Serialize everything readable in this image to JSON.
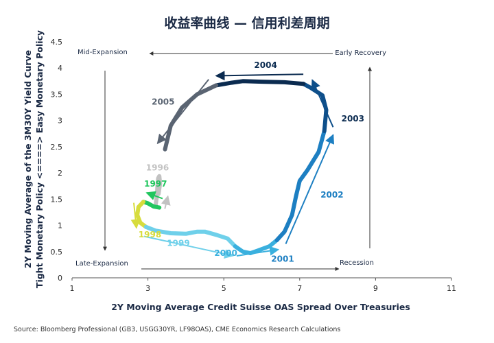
{
  "chart_data": {
    "type": "line",
    "title": "收益率曲线 — 信用利差周期",
    "xlabel": "2Y Moving Average Credit Suisse OAS Spread Over Treasuries",
    "ylabel_line1": "2Y Moving Average of the 3M30Y Yield Curve",
    "ylabel_line2": "Tight Monetary Policy <====> Easy Monetary Policy",
    "xlim": [
      1,
      11
    ],
    "ylim": [
      0,
      4.5
    ],
    "x_ticks": [
      "1",
      "3",
      "5",
      "7",
      "9",
      "11"
    ],
    "y_ticks": [
      "0",
      "0.5",
      "1",
      "1.5",
      "2",
      "2.5",
      "3",
      "3.5",
      "4",
      "4.5"
    ],
    "grid": false,
    "quadrant_labels": {
      "top_left": "Mid-Expansion",
      "top_right": "Early Recovery",
      "bottom_left": "Late-Expansion",
      "bottom_right": "Recession"
    },
    "series": [
      {
        "name": "1996",
        "color": "#c2c2c2",
        "points": [
          [
            3.2,
            1.36
          ],
          [
            3.22,
            1.48
          ],
          [
            3.24,
            1.6
          ],
          [
            3.25,
            1.75
          ],
          [
            3.27,
            1.9
          ],
          [
            3.3,
            1.94
          ],
          [
            3.32,
            1.8
          ],
          [
            3.28,
            1.6
          ]
        ]
      },
      {
        "name": "1997",
        "color": "#21c65e",
        "points": [
          [
            3.3,
            1.34
          ],
          [
            3.15,
            1.36
          ],
          [
            3.0,
            1.42
          ],
          [
            2.88,
            1.45
          ]
        ]
      },
      {
        "name": "1998",
        "color": "#d7dc3c",
        "points": [
          [
            2.88,
            1.45
          ],
          [
            2.75,
            1.35
          ],
          [
            2.72,
            1.2
          ],
          [
            2.8,
            1.05
          ],
          [
            2.95,
            0.97
          ]
        ]
      },
      {
        "name": "1999",
        "color": "#6fd0ea",
        "points": [
          [
            2.95,
            0.97
          ],
          [
            3.2,
            0.9
          ],
          [
            3.6,
            0.85
          ],
          [
            4.0,
            0.84
          ],
          [
            4.3,
            0.88
          ],
          [
            4.5,
            0.88
          ],
          [
            4.8,
            0.82
          ],
          [
            5.1,
            0.75
          ],
          [
            5.3,
            0.6
          ]
        ]
      },
      {
        "name": "2000",
        "color": "#3ab0de",
        "points": [
          [
            5.3,
            0.6
          ],
          [
            5.5,
            0.5
          ],
          [
            5.7,
            0.47
          ],
          [
            5.9,
            0.52
          ],
          [
            6.2,
            0.6
          ],
          [
            6.4,
            0.72
          ]
        ]
      },
      {
        "name": "2001",
        "color": "#1d7fc2",
        "points": [
          [
            6.4,
            0.72
          ],
          [
            6.6,
            0.88
          ],
          [
            6.8,
            1.2
          ],
          [
            6.9,
            1.55
          ],
          [
            7.0,
            1.85
          ],
          [
            7.2,
            2.05
          ],
          [
            7.5,
            2.4
          ],
          [
            7.65,
            2.8
          ]
        ]
      },
      {
        "name": "2002",
        "color": "#0e4f8a",
        "points": [
          [
            7.65,
            2.8
          ],
          [
            7.7,
            3.2
          ],
          [
            7.6,
            3.48
          ],
          [
            7.3,
            3.62
          ],
          [
            7.1,
            3.7
          ]
        ]
      },
      {
        "name": "2003",
        "color": "#0b2b50",
        "points": [
          [
            7.1,
            3.7
          ],
          [
            6.6,
            3.73
          ],
          [
            6.0,
            3.74
          ],
          [
            5.5,
            3.75
          ],
          [
            5.2,
            3.72
          ],
          [
            4.8,
            3.67
          ]
        ]
      },
      {
        "name": "2004",
        "color": "#5a6472",
        "points": [
          [
            4.8,
            3.67
          ],
          [
            4.3,
            3.5
          ],
          [
            3.9,
            3.25
          ],
          [
            3.6,
            2.9
          ],
          [
            3.45,
            2.45
          ]
        ]
      }
    ],
    "year_annotations": [
      {
        "label": "1996",
        "color": "#c2c2c2",
        "x": 2.95,
        "y": 2.05
      },
      {
        "label": "1997",
        "color": "#21c65e",
        "x": 2.9,
        "y": 1.74
      },
      {
        "label": "1998",
        "color": "#d7dc3c",
        "x": 2.75,
        "y": 0.77
      },
      {
        "label": "1999",
        "color": "#6fd0ea",
        "x": 3.5,
        "y": 0.61
      },
      {
        "label": "2000",
        "color": "#3ab0de",
        "x": 4.75,
        "y": 0.42
      },
      {
        "label": "2001",
        "color": "#1d7fc2",
        "x": 6.25,
        "y": 0.31
      },
      {
        "label": "2002",
        "color": "#1d7fc2",
        "x": 7.55,
        "y": 1.53
      },
      {
        "label": "2003",
        "color": "#0b2b50",
        "x": 8.1,
        "y": 2.98
      },
      {
        "label": "2004",
        "color": "#0b2b50",
        "x": 5.8,
        "y": 4.0
      },
      {
        "label": "2005",
        "color": "#5a6472",
        "x": 3.1,
        "y": 3.3
      }
    ]
  },
  "source": "Source: Bloomberg Professional (GB3, USGG30YR, LF98OAS), CME Economics Research Calculations"
}
